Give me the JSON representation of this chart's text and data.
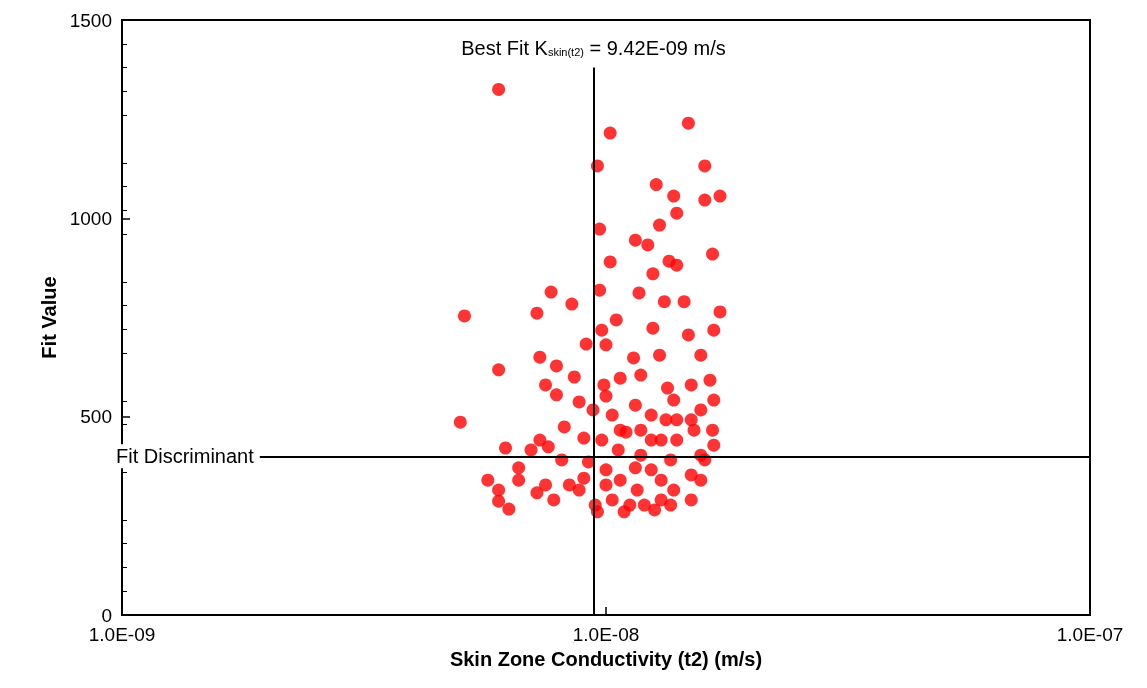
{
  "chart_data": {
    "type": "scatter",
    "xlabel": "Skin Zone Conductivity (t2) (m/s)",
    "ylabel": "Fit Value",
    "log": "x",
    "xlim": [
      1e-09,
      1e-07
    ],
    "xticks": [
      {
        "value": 1e-09,
        "label": "1.0E-09"
      },
      {
        "value": 1e-08,
        "label": "1.0E-08"
      },
      {
        "value": 1e-07,
        "label": "1.0E-07"
      }
    ],
    "ylim": [
      0,
      1500
    ],
    "yticks": [
      0,
      500,
      1000,
      1500
    ],
    "grid": false,
    "marker": "circle",
    "ref_lines": [
      {
        "axis": "x",
        "value": 9.42e-09,
        "label": "Best Fit K$_{skin(t2)}$ = 9.42E-09 m/s",
        "color": "#000000"
      },
      {
        "axis": "y",
        "value": 400,
        "label": "Fit Discriminant",
        "color": "#000000"
      }
    ],
    "series": [
      {
        "color": "#ff0000",
        "x": [
          6e-09,
          1.02e-08,
          1.48e-08,
          9.6e-09,
          1.6e-08,
          1.27e-08,
          1.38e-08,
          1.72e-08,
          1.6e-08,
          1.4e-08,
          1.29e-08,
          9.7e-09,
          1.15e-08,
          1.22e-08,
          1.66e-08,
          1.02e-08,
          1.35e-08,
          1.4e-08,
          1.25e-08,
          7.7e-09,
          1.17e-08,
          8.5e-09,
          1.45e-08,
          1.32e-08,
          9.7e-09,
          5.1e-09,
          7.2e-09,
          1.05e-08,
          1.72e-08,
          9.8e-09,
          1.25e-08,
          1.48e-08,
          1.67e-08,
          9.1e-09,
          1e-08,
          7.3e-09,
          1.14e-08,
          6e-09,
          1.29e-08,
          1.57e-08,
          7.9e-09,
          8.6e-09,
          1.07e-08,
          1.18e-08,
          7.5e-09,
          7.9e-09,
          9.9e-09,
          1e-08,
          1.34e-08,
          1.5e-08,
          1.64e-08,
          8.8e-09,
          1.15e-08,
          5e-09,
          9.4e-09,
          1.03e-08,
          1.24e-08,
          1.57e-08,
          8.2e-09,
          7.6e-09,
          7e-09,
          9e-09,
          1.1e-08,
          1.3e-08,
          1.66e-08,
          9.8e-09,
          1.4e-08,
          8.1e-09,
          6.6e-09,
          9.2e-09,
          1.18e-08,
          1.57e-08,
          5.7e-09,
          6e-09,
          6e-09,
          6.3e-09,
          6.6e-09,
          7.2e-09,
          7.5e-09,
          7.8e-09,
          8.4e-09,
          8.8e-09,
          9.5e-09,
          9.6e-09,
          1.03e-08,
          1.07e-08,
          1.12e-08,
          1.2e-08,
          1.3e-08,
          1.38e-08,
          1.5e-08,
          1.6e-08,
          1.67e-08,
          1.07e-08,
          1.24e-08,
          1.36e-08,
          1e-08,
          1.15e-08,
          1.5e-08,
          1.09e-08,
          1.26e-08,
          1.4e-08,
          1.52e-08,
          1.18e-08,
          1.33e-08,
          1.67e-08,
          1.38e-08,
          1.06e-08,
          1.3e-08,
          1.57e-08,
          1e-08,
          9e-09,
          7.3e-09,
          6.2e-09,
          1.24e-08,
          1.5e-08,
          1.16e-08,
          1.36e-08
        ],
        "values": [
          1325,
          1215,
          1240,
          1132,
          1132,
          1085,
          1056,
          1056,
          1046,
          1013,
          983,
          973,
          945,
          933,
          910,
          890,
          892,
          882,
          860,
          814,
          812,
          784,
          790,
          790,
          819,
          754,
          761,
          744,
          764,
          718,
          723,
          706,
          718,
          683,
          681,
          650,
          648,
          618,
          655,
          655,
          628,
          600,
          597,
          605,
          580,
          555,
          580,
          552,
          572,
          580,
          592,
          537,
          529,
          486,
          517,
          504,
          504,
          517,
          474,
          424,
          416,
          446,
          461,
          441,
          466,
          441,
          492,
          391,
          371,
          386,
          403,
          403,
          340,
          315,
          287,
          267,
          340,
          308,
          328,
          290,
          328,
          315,
          277,
          260,
          290,
          340,
          277,
          277,
          290,
          315,
          353,
          391,
          428,
          466,
          366,
          391,
          366,
          371,
          290,
          260,
          265,
          441,
          466,
          466,
          492,
          542,
          542,
          416,
          340,
          340,
          328,
          345,
          441,
          421,
          441,
          492,
          315,
          277
        ]
      }
    ]
  }
}
